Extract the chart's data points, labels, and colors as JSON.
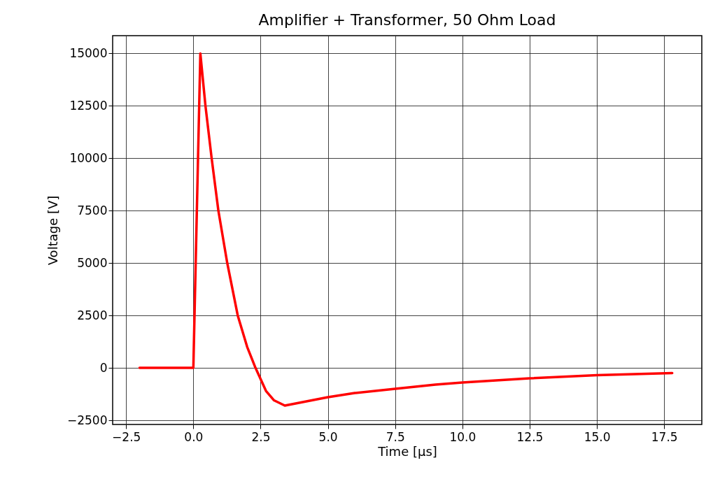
{
  "chart_data": {
    "type": "line",
    "title": "Amplifier + Transformer, 50 Ohm Load",
    "xlabel": "Time [μs]",
    "ylabel": "Voltage [V]",
    "x": [
      -2,
      -1,
      0,
      0.26,
      0.45,
      0.68,
      0.93,
      1.26,
      1.65,
      2.0,
      2.31,
      2.7,
      3.0,
      3.4,
      4.0,
      5.0,
      6.0,
      7.5,
      9.0,
      10.0,
      12.5,
      15.0,
      17.8
    ],
    "series": [
      {
        "color": "#ff0000",
        "values": [
          0,
          0,
          0,
          15000,
          12500,
          10000,
          7500,
          5000,
          2500,
          1000,
          0,
          -1100,
          -1550,
          -1800,
          -1650,
          -1400,
          -1200,
          -1000,
          -800,
          -700,
          -500,
          -350,
          -250
        ]
      }
    ],
    "xlim": [
      -3,
      18.9
    ],
    "xticks": [
      -2.5,
      {
        "value": 0,
        "label": "0.0"
      },
      2.5,
      {
        "value": 5,
        "label": "5.0"
      },
      7.5,
      {
        "value": 10,
        "label": "10.0"
      },
      12.5,
      {
        "value": 15,
        "label": "15.0"
      },
      17.5
    ],
    "ylim": [
      -2700,
      15850
    ],
    "yticks": [
      -2500,
      0,
      2500,
      5000,
      7500,
      10000,
      12500,
      15000
    ],
    "grid": true,
    "marker": "none",
    "line_style": "solid"
  }
}
